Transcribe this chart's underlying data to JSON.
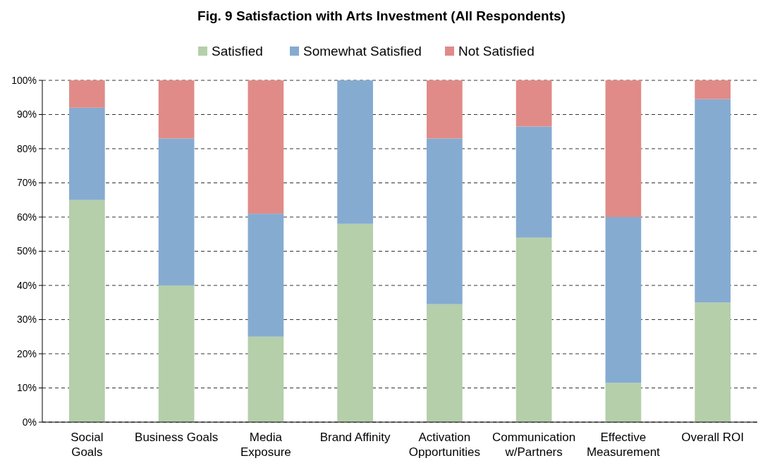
{
  "chart_data": {
    "type": "bar",
    "title": "Fig. 9  Satisfaction with Arts Investment (All Respondents)",
    "categories": [
      "Social\nGoals",
      "Business Goals",
      "Media\nExposure",
      "Brand Affinity",
      "Activation\nOpportunities",
      "Communication\nw/Partners",
      "Effective\nMeasurement",
      "Overall ROI"
    ],
    "series": [
      {
        "name": "Satisfied",
        "color": "#b4cfaa",
        "values": [
          65,
          40,
          25,
          58,
          34.5,
          54,
          11.5,
          35
        ]
      },
      {
        "name": "Somewhat Satisfied",
        "color": "#86abd1",
        "values": [
          27,
          43,
          36,
          42,
          48.5,
          32.5,
          48.5,
          59.5
        ]
      },
      {
        "name": "Not Satisfied",
        "color": "#e08b88",
        "values": [
          8,
          17,
          39,
          0,
          17,
          13.5,
          40,
          5.5
        ]
      }
    ],
    "stacked": true,
    "ylim": [
      0,
      100
    ],
    "yticks": [
      {
        "value": 0,
        "label": "0%"
      },
      {
        "value": 10,
        "label": "10%"
      },
      {
        "value": 20,
        "label": "20%"
      },
      {
        "value": 30,
        "label": "30%"
      },
      {
        "value": 40,
        "label": "40%"
      },
      {
        "value": 50,
        "label": "50%"
      },
      {
        "value": 60,
        "label": "60%"
      },
      {
        "value": 70,
        "label": "70%"
      },
      {
        "value": 80,
        "label": "80%"
      },
      {
        "value": 90,
        "label": "90%"
      },
      {
        "value": 100,
        "label": "100%"
      }
    ],
    "grid": "y",
    "legend": "top"
  }
}
